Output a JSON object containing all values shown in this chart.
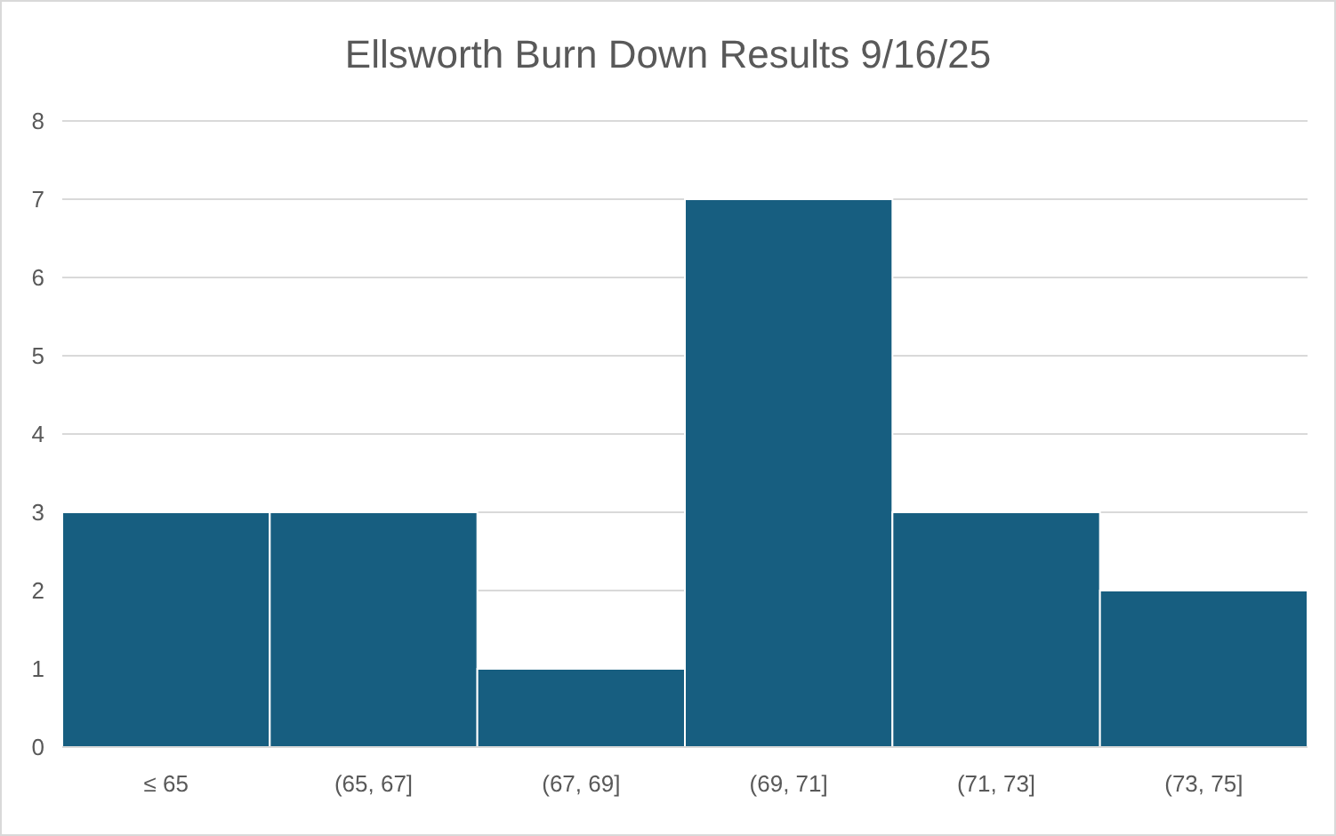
{
  "chart_data": {
    "type": "bar",
    "title": "Ellsworth Burn Down Results 9/16/25",
    "categories": [
      "≤ 65",
      "(65, 67]",
      "(67, 69]",
      "(69, 71]",
      "(71, 73]",
      "(73, 75]"
    ],
    "values": [
      3,
      3,
      1,
      7,
      3,
      2
    ],
    "color": "#175e80",
    "ylim": [
      0,
      8
    ],
    "yticks": [
      0,
      1,
      2,
      3,
      4,
      5,
      6,
      7,
      8
    ],
    "grid": "y"
  }
}
